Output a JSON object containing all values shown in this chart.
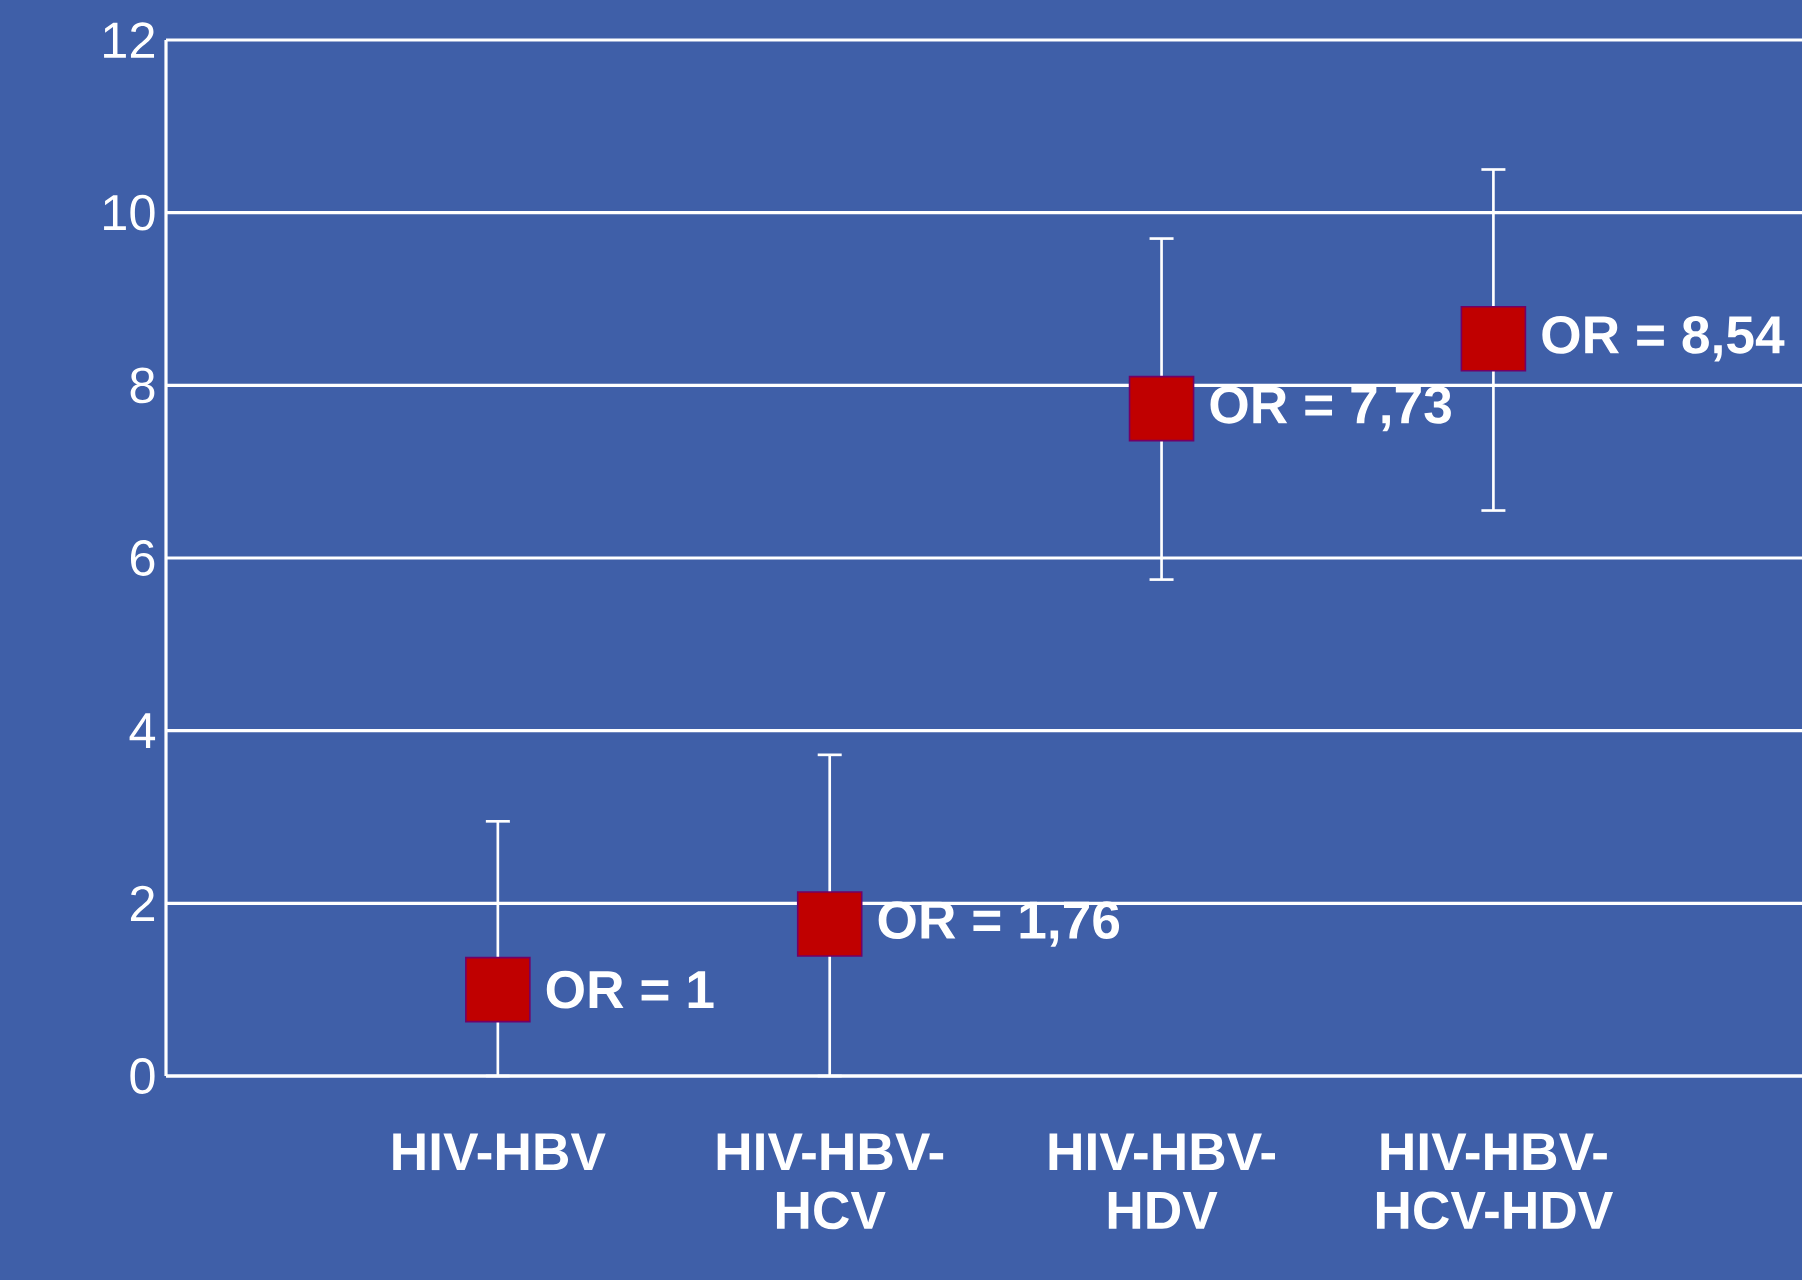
{
  "chart_data": {
    "type": "scatter",
    "categories": [
      "HIV-HBV",
      "HIV-HBV-HCV",
      "HIV-HBV-HDV",
      "HIV-HBV-HCV-HDV"
    ],
    "values": [
      1,
      1.76,
      7.73,
      8.54
    ],
    "errors": [
      [
        0,
        2.95
      ],
      [
        0,
        3.72
      ],
      [
        5.75,
        9.7
      ],
      [
        6.55,
        10.5
      ]
    ],
    "value_labels": [
      "OR = 1",
      "OR = 1,76",
      "OR = 7,73",
      "OR = 8,54"
    ],
    "color": "#c00000",
    "marker": "square",
    "ylim": [
      0,
      12
    ],
    "yticks": [
      0,
      2,
      4,
      6,
      8,
      10,
      12
    ],
    "grid": "y"
  }
}
